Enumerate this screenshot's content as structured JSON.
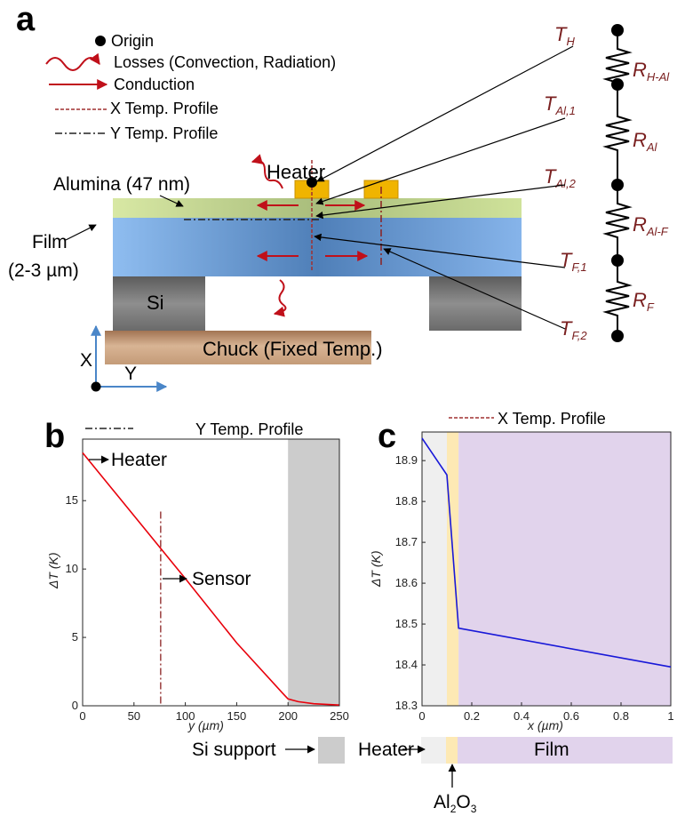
{
  "panel_a": {
    "label": "a",
    "legend": {
      "origin": "Origin",
      "losses": "Losses (Convection, Radiation)",
      "conduction": "Conduction",
      "x_profile": "X Temp. Profile",
      "y_profile": "Y Temp. Profile"
    },
    "heater_label": "Heater",
    "alumina_label": "Alumina (47 nm)",
    "film_label_1": "Film",
    "film_label_2": "(2-3 µm)",
    "si_label": "Si",
    "chuck_label": "Chuck (Fixed Temp.)",
    "axis_x": "X",
    "axis_y": "Y",
    "nodes": [
      {
        "main": "T",
        "sub": "H"
      },
      {
        "main": "T",
        "sub": "Al,1"
      },
      {
        "main": "T",
        "sub": "Al,2"
      },
      {
        "main": "T",
        "sub": "F,1"
      },
      {
        "main": "T",
        "sub": "F,2"
      }
    ],
    "resistors": [
      {
        "main": "R",
        "sub": "H-Al"
      },
      {
        "main": "R",
        "sub": "Al"
      },
      {
        "main": "R",
        "sub": "Al-F"
      },
      {
        "main": "R",
        "sub": "F"
      }
    ],
    "colors": {
      "alumina": "#c9dc8e",
      "film": "#7fb0e6",
      "si": "#6f6f6f",
      "chuck": "#b98b66",
      "heater": "#f0b400",
      "arrow": "#c0101a",
      "resistor_label": "#7a2020",
      "axis_arrow": "#4a86c8"
    }
  },
  "panel_b": {
    "label": "b",
    "legend": "Y Temp. Profile",
    "heater_annot": "Heater",
    "sensor_annot": "Sensor",
    "xlabel": "y (µm)",
    "ylabel": "ΔT (K)",
    "si_support_label": "Si support"
  },
  "panel_c": {
    "label": "c",
    "legend": "X Temp. Profile",
    "xlabel": "x (µm)",
    "ylabel": "ΔT (K)",
    "heater_label": "Heater",
    "al2o3_main": "Al",
    "al2o3_sub1": "2",
    "al2o3_mid": "O",
    "al2o3_sub2": "3",
    "film_label": "Film"
  },
  "chart_data": [
    {
      "type": "line",
      "xlabel": "y (µm)",
      "ylabel": "ΔT (K)",
      "xlim": [
        0,
        250
      ],
      "ylim": [
        0,
        19.5
      ],
      "xticks": [
        0,
        50,
        100,
        150,
        200,
        250
      ],
      "yticks": [
        0,
        5,
        10,
        15
      ],
      "series": [
        {
          "x": [
            0,
            50,
            100,
            150,
            195,
            200,
            210,
            225,
            250
          ],
          "y": [
            18.5,
            13.9,
            9.3,
            4.6,
            0.9,
            0.5,
            0.3,
            0.15,
            0.05
          ],
          "color": "#e8000b"
        }
      ],
      "vline": {
        "x": 76,
        "label": "Y Temp. Profile"
      },
      "shaded_region": {
        "x": [
          200,
          250
        ],
        "label": "Si support",
        "color": "#cccccc"
      },
      "annotations": [
        {
          "text": "Heater",
          "x": 0,
          "y": 18.5
        },
        {
          "text": "Sensor",
          "x": 76,
          "y": 11.5
        }
      ]
    },
    {
      "type": "line",
      "xlabel": "x (µm)",
      "ylabel": "ΔT (K)",
      "xlim": [
        0,
        1
      ],
      "ylim": [
        18.3,
        18.97
      ],
      "xticks": [
        0,
        0.2,
        0.4,
        0.6,
        0.8,
        1
      ],
      "xtick_labels": [
        "0",
        "0.2",
        "0.4",
        "0.6",
        "0.8",
        "1"
      ],
      "yticks": [
        18.3,
        18.4,
        18.5,
        18.6,
        18.7,
        18.8,
        18.9
      ],
      "series": [
        {
          "x": [
            0,
            0.1,
            0.147,
            1
          ],
          "y": [
            18.955,
            18.865,
            18.49,
            18.395
          ],
          "color": "#1818d8"
        }
      ],
      "regions": [
        {
          "x": [
            0,
            0.1
          ],
          "label": "Heater",
          "color": "#efefef"
        },
        {
          "x": [
            0.1,
            0.147
          ],
          "label": "Al2O3",
          "color": "#fde9b4"
        },
        {
          "x": [
            0.147,
            1
          ],
          "label": "Film",
          "color": "#e1d3ec"
        }
      ]
    }
  ]
}
